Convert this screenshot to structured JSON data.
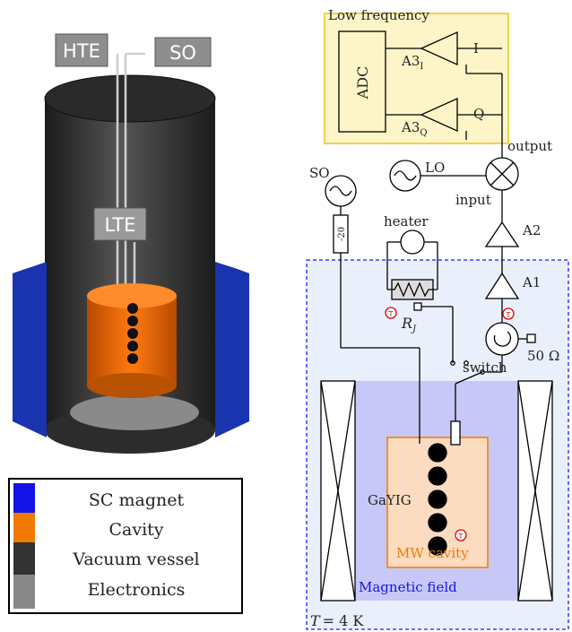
{
  "left": {
    "tags": {
      "hte": "HTE",
      "so": "SO",
      "lte": "LTE"
    },
    "legend": [
      {
        "label": "SC magnet",
        "color": "#1414e6"
      },
      {
        "label": "Cavity",
        "color": "#f07a00"
      },
      {
        "label": "Vacuum vessel",
        "color": "#333333"
      },
      {
        "label": "Electronics",
        "color": "#888888"
      }
    ]
  },
  "right": {
    "low_freq_title": "Low frequency",
    "adc": "ADC",
    "a3i_main": "A3",
    "a3i_sub": "I",
    "a3q_main": "A3",
    "a3q_sub": "Q",
    "i_label": "I",
    "q_label": "Q",
    "output": "output",
    "input": "input",
    "lo": "LO",
    "so": "SO",
    "attenuator": "-20",
    "heater": "heater",
    "a2": "A2",
    "a1": "A1",
    "rj_main": "R",
    "rj_sub": "J",
    "fifty_ohm": "50 Ω",
    "switch": "switch",
    "gayig": "GaYIG",
    "mw_cavity": "MW cavity",
    "magnetic_field": "Magnetic field",
    "temperature_var": "T",
    "temperature_val": "= 4 K",
    "thermo_mark": "T"
  }
}
